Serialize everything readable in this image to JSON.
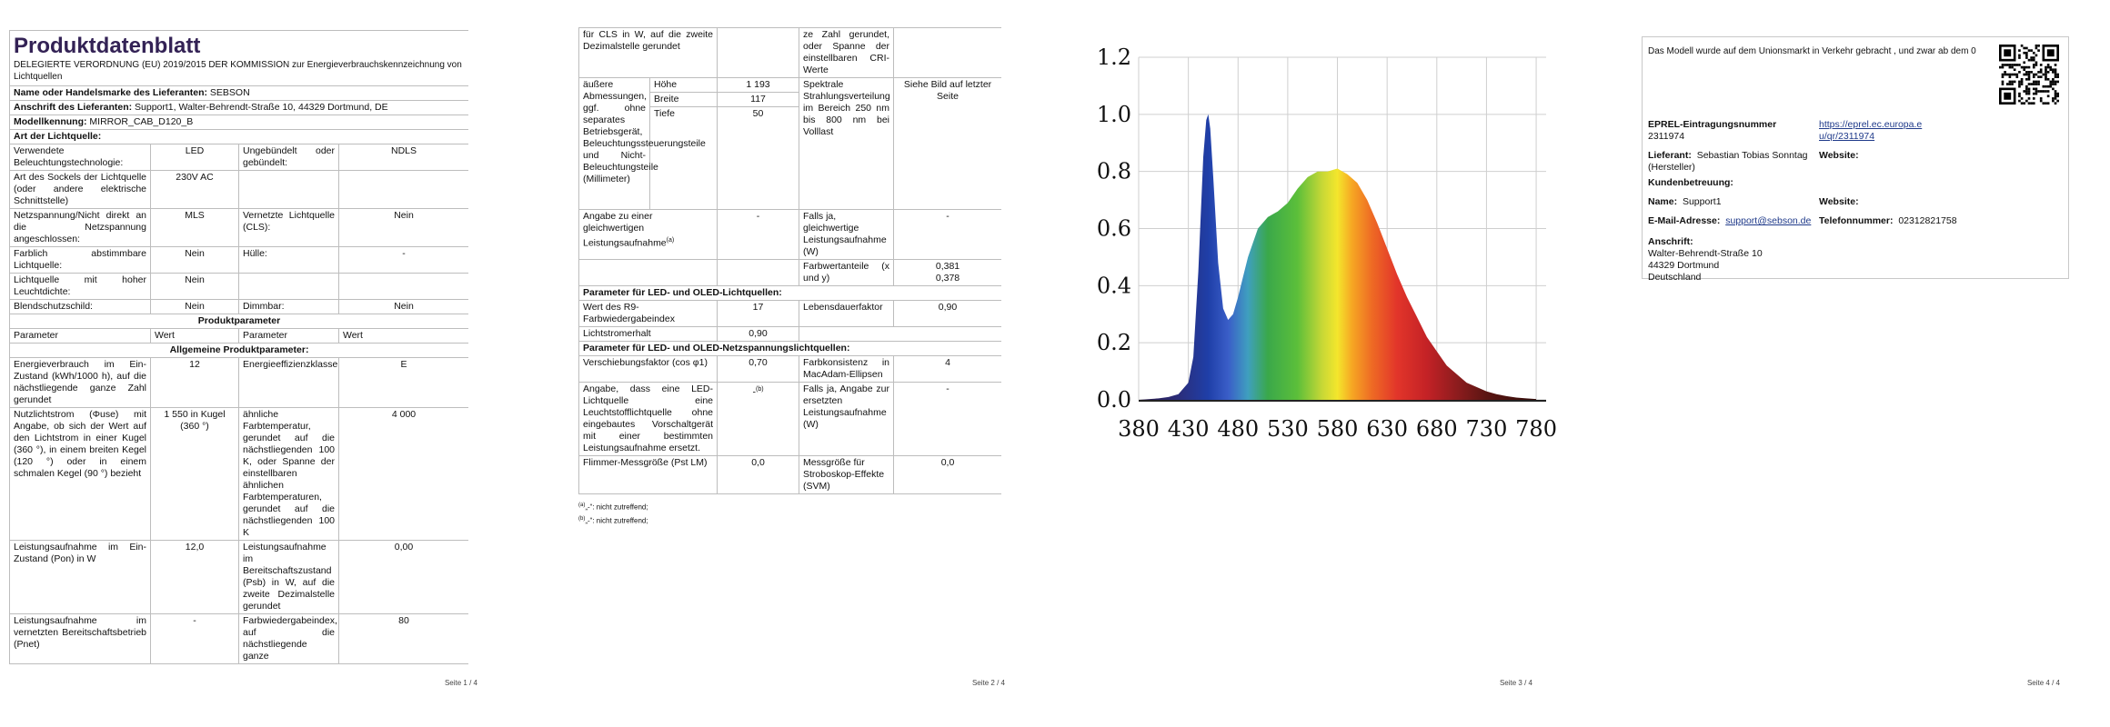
{
  "p1": {
    "title": "Produktdatenblatt",
    "regulation": "DELEGIERTE VERORDNUNG (EU) 2019/2015 DER KOMMISSION zur Energieverbrauchskennzeichnung von Lichtquellen",
    "supplier_label": "Name oder Handelsmarke des Lieferanten:",
    "supplier_value": "SEBSON",
    "address_label": "Anschrift des Lieferanten:",
    "address_value": "Support1, Walter-Behrendt-Straße 10, 44329 Dortmund, DE",
    "model_label": "Modellkennung:",
    "model_value": "MIRROR_CAB_D120_B",
    "type_heading": "Art der Lichtquelle:",
    "rows_a": [
      [
        "Verwendete Beleuchtungstechnologie:",
        "LED",
        "Ungebündelt oder gebündelt:",
        "NDLS"
      ],
      [
        "Art des Sockels der Lichtquelle (oder andere elektrische Schnittstelle)",
        "230V AC",
        "",
        ""
      ],
      [
        "Netzspannung/Nicht direkt an die Netzspannung angeschlossen:",
        "MLS",
        "Vernetzte Lichtquelle (CLS):",
        "Nein"
      ],
      [
        "Farblich abstimmbare Lichtquelle:",
        "Nein",
        "Hülle:",
        "-"
      ],
      [
        "Lichtquelle mit hoher Leuchtdichte:",
        "Nein",
        "",
        ""
      ],
      [
        "Blendschutzschild:",
        "Nein",
        "Dimmbar:",
        "Nein"
      ]
    ],
    "product_params": "Produktparameter",
    "col_headers": [
      "Parameter",
      "Wert",
      "Parameter",
      "Wert"
    ],
    "general_params": "Allgemeine Produktparameter:",
    "rows_b": [
      [
        "Energieverbrauch im Ein-Zustand (kWh/1000 h), auf die nächstliegende ganze Zahl gerundet",
        "12",
        "Energieeffizienzklasse",
        "E"
      ],
      [
        "Nutzlichtstrom (Φuse) mit Angabe, ob sich der Wert auf den Lichtstrom in einer Kugel (360 °), in einem breiten Kegel (120 °) oder in einem schmalen Kegel (90 °) bezieht",
        "1 550 in Kugel (360 °)",
        "ähnliche Farbtemperatur, gerundet auf die nächstliegenden 100 K, oder Spanne der einstellbaren ähnlichen Farbtemperaturen, gerundet auf die nächstliegenden 100 K",
        "4 000"
      ],
      [
        "Leistungsaufnahme im Ein-Zustand (Pon) in W",
        "12,0",
        "Leistungsaufnahme im Bereitschaftszustand (Psb) in W, auf die zweite Dezimalstelle gerundet",
        "0,00"
      ],
      [
        "Leistungsaufnahme im vernetzten Bereitschaftsbetrieb (Pnet)",
        "-",
        "Farbwiedergabeindex, auf die nächstliegende ganze",
        "80"
      ]
    ],
    "page_number": "Seite 1 / 4"
  },
  "p2": {
    "top_left": "für CLS in W, auf die zweite Dezimalstelle gerundet",
    "top_right": "ze Zahl gerundet, oder Spanne der einstellbaren CRI-Werte",
    "dims_label": "äußere Abmessungen, ggf. ohne separates Betriebsgerät, Beleuchtungssteuerungsteile und Nicht-Beleuchtungsteile (Millimeter)",
    "dims": [
      [
        "Höhe",
        "1 193"
      ],
      [
        "Breite",
        "117"
      ],
      [
        "Tiefe",
        "50"
      ]
    ],
    "spectral_label": "Spektrale Strahlungsverteilung im Bereich 250 nm bis 800 nm bei Volllast",
    "spectral_value": "Siehe Bild auf letzter Seite",
    "equiv_label": "Angabe zu einer gleichwertigen Leistungsaufnahme",
    "equiv_value": "-",
    "equiv_yes_label": "Falls ja, gleichwertige Leistungsaufnahme (W)",
    "equiv_yes_value": "-",
    "chroma_label": "Farbwertanteile (x und y)",
    "chroma_x": "0,381",
    "chroma_y": "0,378",
    "led_heading": "Parameter für LED- und OLED-Lichtquellen:",
    "r9_label": "Wert des R9-Farbwiedergabeindex",
    "r9_value": "17",
    "life_label": "Lebensdauerfaktor",
    "life_value": "0,90",
    "maint_label": "Lichtstromerhalt",
    "maint_value": "0,90",
    "mains_heading": "Parameter für LED- und OLED-Netzspannungslichtquellen:",
    "pf_label": "Verschiebungsfaktor (cos φ1)",
    "pf_value": "0,70",
    "macadam_label": "Farbkonsistenz in MacAdam-Ellipsen",
    "macadam_value": "4",
    "replace_label": "Angabe, dass eine LED-Lichtquelle eine Leuchtstofflichtquelle ohne eingebautes Vorschaltgerät mit einer bestimmten Leistungsaufnahme ersetzt.",
    "replace_value": "-",
    "replace_yes_label": "Falls ja, Angabe zur ersetzten Leistungsaufnahme (W)",
    "replace_yes_value": "-",
    "flicker_label": "Flimmer-Messgröße (Pst LM)",
    "flicker_value": "0,0",
    "strobo_label": "Messgröße für Stroboskop-Effekte (SVM)",
    "strobo_value": "0,0",
    "fn_a": "„-“: nicht zutreffend;",
    "fn_b": "„-“: nicht zutreffend;",
    "page_number": "Seite 2 / 4"
  },
  "p3": {
    "page_number": "Seite 3 / 4"
  },
  "chart_data": {
    "type": "area",
    "title": "",
    "xlabel": "",
    "ylabel": "",
    "xlim": [
      380,
      790
    ],
    "ylim": [
      0.0,
      1.2
    ],
    "x_ticks": [
      "380",
      "430",
      "480",
      "530",
      "580",
      "630",
      "680",
      "730",
      "780"
    ],
    "y_ticks": [
      "0.0",
      "0.2",
      "0.4",
      "0.6",
      "0.8",
      "1.0",
      "1.2"
    ],
    "grid": true,
    "series": [
      {
        "x": [
          380,
          400,
          410,
          420,
          430,
          435,
          440,
          445,
          448,
          450,
          452,
          455,
          460,
          465,
          470,
          475,
          480,
          485,
          490,
          500,
          510,
          520,
          530,
          540,
          550,
          560,
          570,
          580,
          590,
          600,
          610,
          620,
          630,
          640,
          650,
          660,
          670,
          680,
          690,
          700,
          710,
          720,
          730,
          740,
          750,
          760,
          770,
          780
        ],
        "y": [
          0.0,
          0.005,
          0.01,
          0.02,
          0.06,
          0.15,
          0.45,
          0.85,
          0.98,
          1.0,
          0.95,
          0.78,
          0.48,
          0.32,
          0.28,
          0.3,
          0.36,
          0.43,
          0.5,
          0.6,
          0.64,
          0.66,
          0.69,
          0.74,
          0.78,
          0.8,
          0.8,
          0.81,
          0.79,
          0.76,
          0.7,
          0.62,
          0.53,
          0.44,
          0.36,
          0.29,
          0.22,
          0.17,
          0.12,
          0.09,
          0.06,
          0.045,
          0.03,
          0.02,
          0.013,
          0.008,
          0.005,
          0.003
        ]
      }
    ]
  },
  "p4": {
    "market_text": "Das Modell wurde auf dem Unionsmarkt in Verkehr gebracht , und zwar ab dem 0",
    "eprel_label": "EPREL-Eintragungsnummer",
    "eprel_value": "2311974",
    "eprel_link": "https://eprel.ec.europa.eu/qr/2311974",
    "supplier_label": "Lieferant:",
    "supplier_value": "Sebastian Tobias Sonntag (Hersteller)",
    "website_label": "Website:",
    "support_heading": "Kundenbetreuung:",
    "name_label": "Name:",
    "name_value": "Support1",
    "website2_label": "Website:",
    "email_label": "E-Mail-Adresse:",
    "email_value": "support@sebson.de",
    "phone_label": "Telefonnummer:",
    "phone_value": "02312821758",
    "address_label": "Anschrift:",
    "address_lines": [
      "Walter-Behrendt-Straße 10",
      "44329 Dortmund",
      "Deutschland"
    ],
    "page_number": "Seite 4 / 4"
  }
}
